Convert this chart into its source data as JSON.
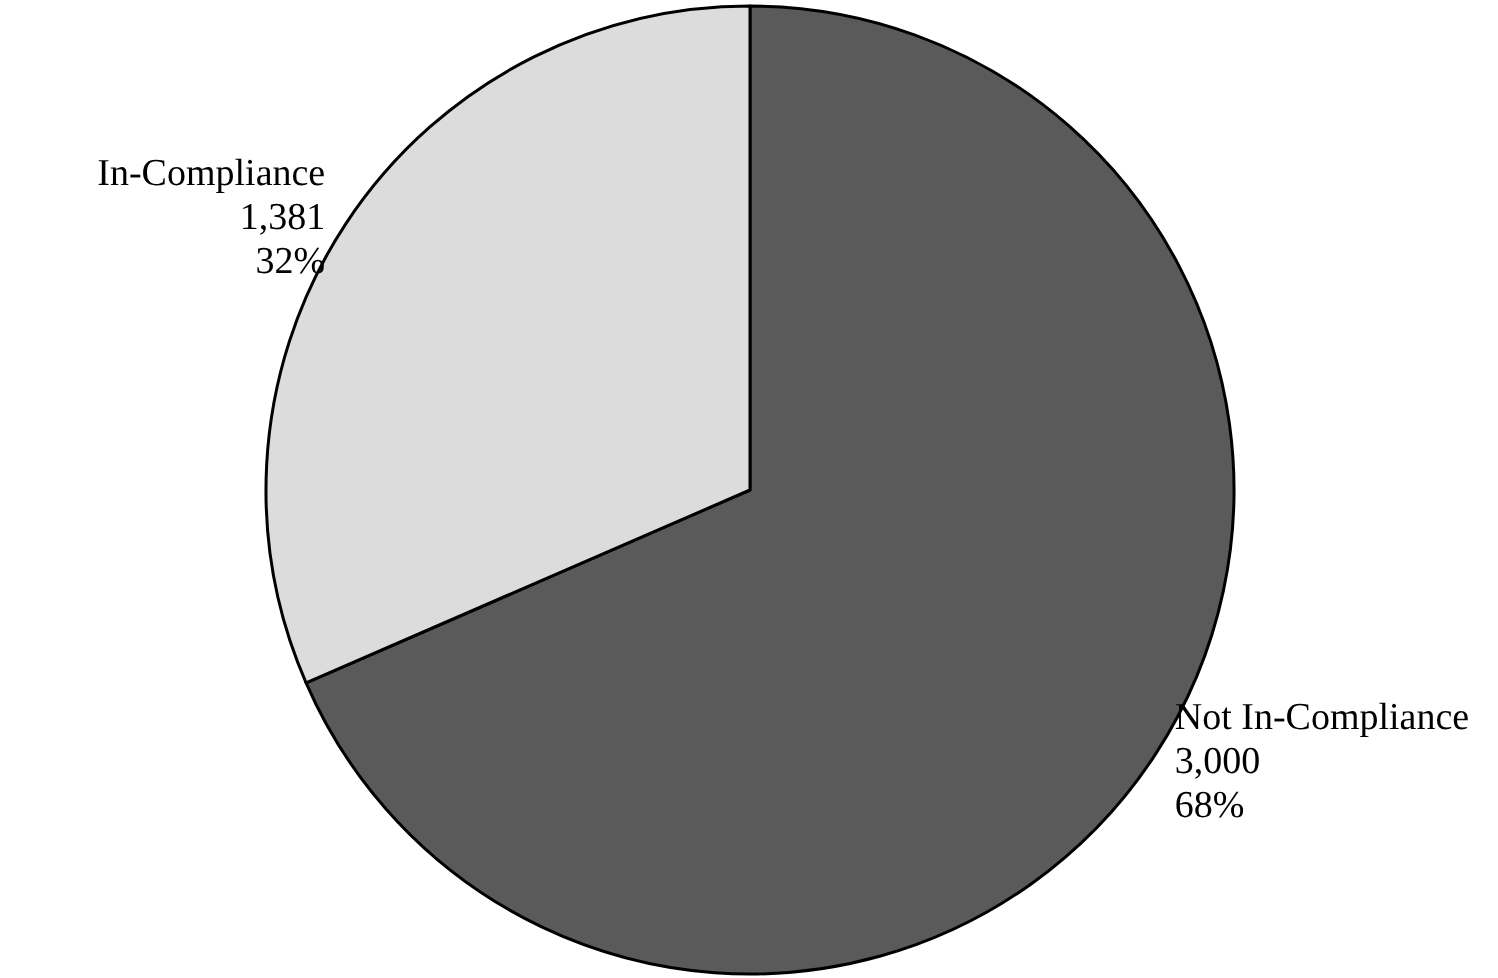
{
  "chart_data": {
    "type": "pie",
    "categories": [
      "Not In-Compliance",
      "In-Compliance"
    ],
    "values": [
      3000,
      1381
    ],
    "value_labels": [
      "3,000\n68%",
      "1,381\n32%"
    ],
    "colors": [
      "#5a5a5a",
      "#dcdcdc"
    ]
  }
}
